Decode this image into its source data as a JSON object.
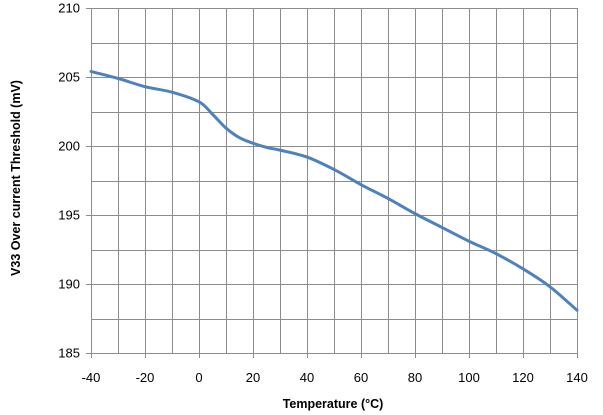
{
  "chart_data": {
    "type": "line",
    "title": "",
    "xlabel": "Temperature (°C)",
    "ylabel": "V33 Over current Threshold (mV)",
    "xlim": [
      -40,
      140
    ],
    "ylim": [
      185,
      210
    ],
    "x_ticks": [
      -40,
      -20,
      0,
      20,
      40,
      60,
      80,
      100,
      120,
      140
    ],
    "y_ticks": [
      185,
      190,
      195,
      200,
      205,
      210
    ],
    "x_tick_labels": [
      "-40",
      "-20",
      "0",
      "20",
      "40",
      "60",
      "80",
      "100",
      "120",
      "140"
    ],
    "y_tick_labels": [
      "185",
      "190",
      "195",
      "200",
      "205",
      "210"
    ],
    "x_minor_step": 10,
    "y_grid_lines": [
      187.5,
      190,
      192.5,
      195,
      197.5,
      200,
      202.5,
      205,
      207.5,
      210
    ],
    "grid": true,
    "legend": "none",
    "series": [
      {
        "color": "#4f81bd",
        "x": [
          -40,
          -30,
          -20,
          -10,
          0,
          5,
          10,
          15,
          20,
          25,
          30,
          40,
          50,
          60,
          70,
          80,
          90,
          100,
          110,
          120,
          130,
          140
        ],
        "y": [
          205.4,
          204.9,
          204.3,
          203.9,
          203.2,
          202.3,
          201.3,
          200.6,
          200.2,
          199.9,
          199.7,
          199.2,
          198.3,
          197.2,
          196.2,
          195.1,
          194.1,
          193.1,
          192.2,
          191.1,
          189.8,
          188.1
        ]
      }
    ]
  }
}
